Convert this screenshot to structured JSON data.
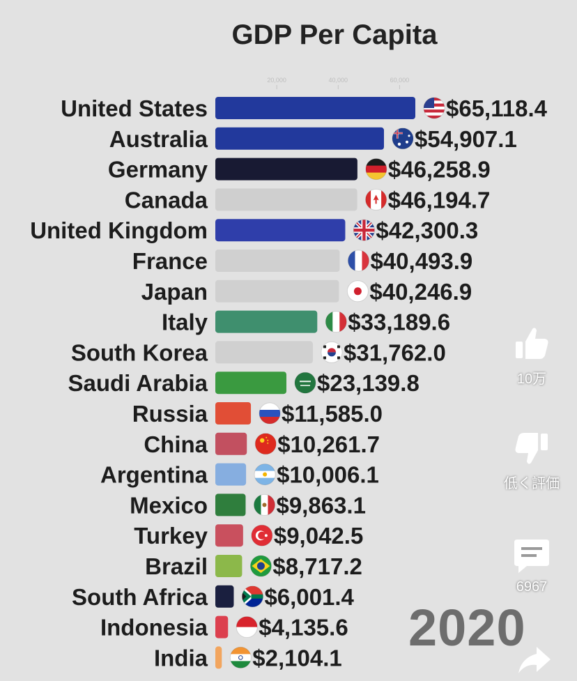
{
  "chart_data": {
    "type": "bar",
    "title": "GDP Per Capita",
    "year": "2020",
    "xticks": [
      "20,000",
      "40,000",
      "60,000"
    ],
    "xtick_values": [
      20000,
      40000,
      60000
    ],
    "categories": [
      "United States",
      "Australia",
      "Germany",
      "Canada",
      "United Kingdom",
      "France",
      "Japan",
      "Italy",
      "South Korea",
      "Saudi Arabia",
      "Russia",
      "China",
      "Argentina",
      "Mexico",
      "Turkey",
      "Brazil",
      "South Africa",
      "Indonesia",
      "India"
    ],
    "values": [
      65118.4,
      54907.1,
      46258.9,
      46194.7,
      42300.3,
      40493.9,
      40246.9,
      33189.6,
      31762.0,
      23139.8,
      11585.0,
      10261.7,
      10006.1,
      9863.1,
      9042.5,
      8717.2,
      6001.4,
      4135.6,
      2104.1
    ],
    "value_labels": [
      "$65,118.4",
      "$54,907.1",
      "$46,258.9",
      "$46,194.7",
      "$42,300.3",
      "$40,493.9",
      "$40,246.9",
      "$33,189.6",
      "$31,762.0",
      "$23,139.8",
      "$11,585.0",
      "$10,261.7",
      "$10,006.1",
      "$9,863.1",
      "$9,042.5",
      "$8,717.2",
      "$6,001.4",
      "$4,135.6",
      "$2,104.1"
    ],
    "bar_colors": [
      "#22399c",
      "#22399c",
      "#181a33",
      "#cfcfcf",
      "#2f3eaa",
      "#d0d0d0",
      "#d0d0d0",
      "#3f8f6e",
      "#d0d0d0",
      "#3a9a40",
      "#e14e36",
      "#c25060",
      "#86aee0",
      "#2f7e3d",
      "#c9505e",
      "#8cb84a",
      "#1a1f3f",
      "#dc3f4e",
      "#f2a55e"
    ],
    "flags": [
      "us-flag",
      "au-flag",
      "de-flag",
      "ca-flag",
      "gb-flag",
      "fr-flag",
      "jp-flag",
      "it-flag",
      "kr-flag",
      "sa-flag",
      "ru-flag",
      "cn-flag",
      "ar-flag",
      "mx-flag",
      "tr-flag",
      "br-flag",
      "za-flag",
      "id-flag",
      "in-flag"
    ],
    "xlim": [
      0,
      66000
    ],
    "grid": false,
    "legend": "none"
  },
  "sidebar": {
    "like_count": "10万",
    "dislike_label": "低く評価",
    "comment_count": "6967"
  }
}
